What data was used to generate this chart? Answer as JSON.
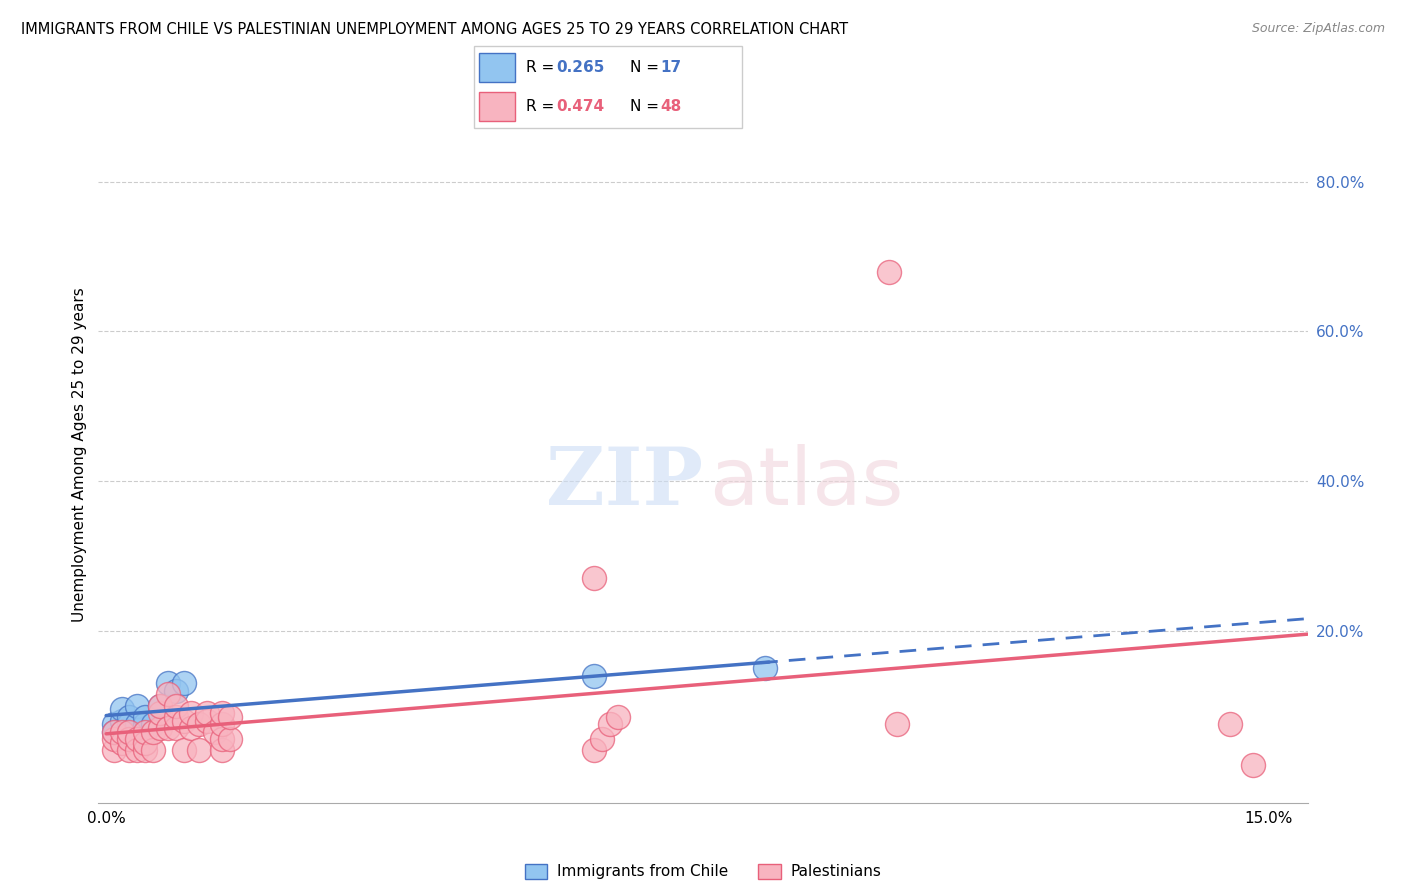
{
  "title": "IMMIGRANTS FROM CHILE VS PALESTINIAN UNEMPLOYMENT AMONG AGES 25 TO 29 YEARS CORRELATION CHART",
  "source": "Source: ZipAtlas.com",
  "ylabel": "Unemployment Among Ages 25 to 29 years",
  "yticks_right": [
    "80.0%",
    "60.0%",
    "40.0%",
    "20.0%"
  ],
  "ytick_vals": [
    0.8,
    0.6,
    0.4,
    0.2
  ],
  "xlim": [
    -0.001,
    0.155
  ],
  "ylim": [
    -0.03,
    0.9
  ],
  "legend_label_blue": "Immigrants from Chile",
  "legend_label_pink": "Palestinians",
  "blue_color": "#92C5F0",
  "pink_color": "#F8B4C0",
  "trendline_blue": "#4472C4",
  "trendline_pink": "#E8607A",
  "blue_points_x": [
    0.001,
    0.001,
    0.002,
    0.002,
    0.003,
    0.003,
    0.004,
    0.004,
    0.005,
    0.005,
    0.006,
    0.007,
    0.008,
    0.009,
    0.01,
    0.063,
    0.085
  ],
  "blue_points_y": [
    0.075,
    0.065,
    0.08,
    0.095,
    0.075,
    0.085,
    0.075,
    0.1,
    0.075,
    0.085,
    0.075,
    0.1,
    0.13,
    0.12,
    0.13,
    0.14,
    0.15
  ],
  "pink_points_x": [
    0.001,
    0.001,
    0.001,
    0.002,
    0.002,
    0.003,
    0.003,
    0.003,
    0.004,
    0.004,
    0.005,
    0.005,
    0.005,
    0.006,
    0.006,
    0.007,
    0.007,
    0.007,
    0.008,
    0.008,
    0.009,
    0.009,
    0.009,
    0.01,
    0.01,
    0.011,
    0.011,
    0.012,
    0.012,
    0.013,
    0.013,
    0.014,
    0.015,
    0.015,
    0.015,
    0.015,
    0.016,
    0.016,
    0.063,
    0.063,
    0.064,
    0.065,
    0.066,
    0.101,
    0.102,
    0.145,
    0.148
  ],
  "pink_points_y": [
    0.04,
    0.055,
    0.065,
    0.05,
    0.065,
    0.04,
    0.055,
    0.065,
    0.04,
    0.055,
    0.04,
    0.05,
    0.065,
    0.04,
    0.065,
    0.07,
    0.09,
    0.1,
    0.07,
    0.115,
    0.07,
    0.085,
    0.1,
    0.04,
    0.08,
    0.07,
    0.09,
    0.04,
    0.075,
    0.08,
    0.09,
    0.065,
    0.04,
    0.055,
    0.075,
    0.09,
    0.055,
    0.085,
    0.27,
    0.04,
    0.055,
    0.075,
    0.085,
    0.68,
    0.075,
    0.075,
    0.02
  ]
}
